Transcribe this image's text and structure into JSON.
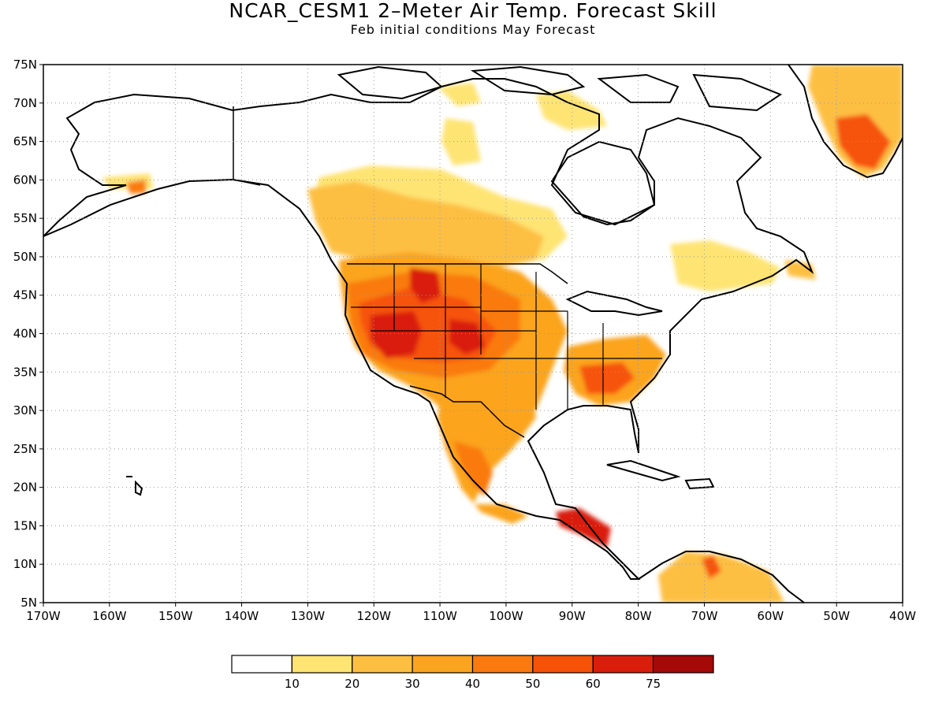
{
  "title": "NCAR_CESM1 2–Meter Air Temp. Forecast Skill",
  "subtitle": "Feb initial conditions  May Forecast",
  "map": {
    "lon_range": [
      -170,
      -40
    ],
    "lat_range": [
      5,
      75
    ],
    "grid": true
  },
  "axes": {
    "lat_labels": [
      "5N",
      "10N",
      "15N",
      "20N",
      "25N",
      "30N",
      "35N",
      "40N",
      "45N",
      "50N",
      "55N",
      "60N",
      "65N",
      "70N",
      "75N"
    ],
    "lon_labels": [
      "170W",
      "160W",
      "150W",
      "140W",
      "130W",
      "120W",
      "110W",
      "100W",
      "90W",
      "80W",
      "70W",
      "60W",
      "50W",
      "40W"
    ]
  },
  "colorbar": {
    "colors": [
      "#ffffff",
      "#fee473",
      "#fdbf42",
      "#fba41f",
      "#fa7a0f",
      "#f65208",
      "#d91e0b",
      "#a50a08"
    ],
    "labels": [
      "10",
      "20",
      "30",
      "40",
      "50",
      "60",
      "75"
    ]
  },
  "chart_data": {
    "type": "heatmap",
    "title": "NCAR_CESM1 2–Meter Air Temp. Forecast Skill",
    "subtitle": "Feb initial conditions  May Forecast",
    "xlim": [
      -170,
      -40
    ],
    "ylim": [
      5,
      75
    ],
    "levels": [
      10,
      20,
      30,
      40,
      50,
      60,
      75
    ],
    "regions": [
      {
        "lon": -115,
        "lat": 40,
        "value": 70
      },
      {
        "lon": -105,
        "lat": 40,
        "value": 55
      },
      {
        "lon": -110,
        "lat": 45,
        "value": 50
      },
      {
        "lon": -100,
        "lat": 45,
        "value": 45
      },
      {
        "lon": -95,
        "lat": 40,
        "value": 35
      },
      {
        "lon": -105,
        "lat": 33,
        "value": 40
      },
      {
        "lon": -100,
        "lat": 30,
        "value": 40
      },
      {
        "lon": -115,
        "lat": 55,
        "value": 30
      },
      {
        "lon": -105,
        "lat": 55,
        "value": 25
      },
      {
        "lon": -85,
        "lat": 33,
        "value": 50
      },
      {
        "lon": -80,
        "lat": 38,
        "value": 25
      },
      {
        "lon": -103,
        "lat": 22,
        "value": 40
      },
      {
        "lon": -90,
        "lat": 15,
        "value": 55
      },
      {
        "lon": -50,
        "lat": 66,
        "value": 45
      },
      {
        "lon": -50,
        "lat": 72,
        "value": 25
      },
      {
        "lon": -70,
        "lat": 8,
        "value": 30
      },
      {
        "lon": -150,
        "lat": 60,
        "value": 15
      }
    ]
  }
}
